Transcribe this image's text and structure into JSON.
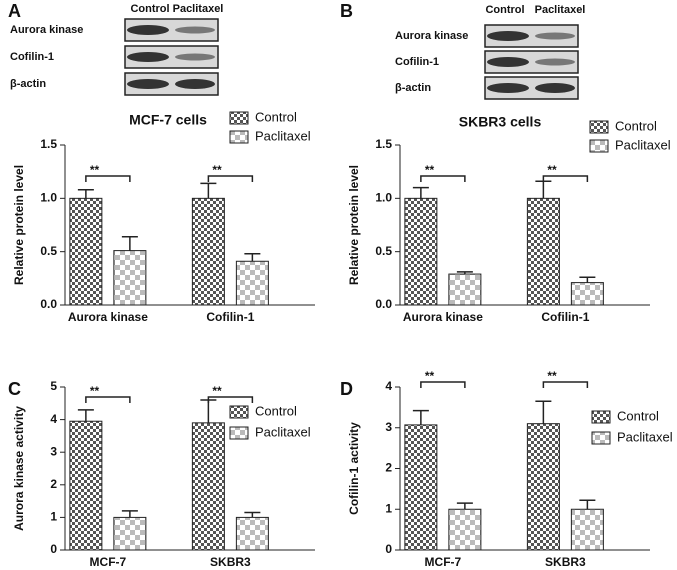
{
  "chart_data": [
    {
      "type": "bar",
      "panel": "A",
      "title": "MCF-7 cells",
      "ylabel": "Relative protein level",
      "blot": {
        "columns": [
          "Control",
          "Paclitaxel"
        ],
        "rows": [
          "Aurora kinase",
          "Cofilin-1",
          "β-actin"
        ]
      },
      "categories": [
        "Aurora kinase",
        "Cofilin-1"
      ],
      "series": [
        {
          "name": "Control",
          "color": "#555555",
          "values": [
            1.0,
            1.0
          ],
          "errors": [
            0.08,
            0.14
          ]
        },
        {
          "name": "Paclitaxel",
          "color": "#bbbbbb",
          "values": [
            0.51,
            0.41
          ],
          "errors": [
            0.13,
            0.07
          ]
        }
      ],
      "significance": [
        "**",
        "**"
      ],
      "ylim": [
        0,
        1.5
      ],
      "yticks": [
        {
          "value": 0,
          "label": "0.0"
        },
        0.5,
        {
          "value": 1,
          "label": "1.0"
        },
        1.5
      ]
    },
    {
      "type": "bar",
      "panel": "B",
      "title": "SKBR3 cells",
      "ylabel": "Relative protein level",
      "blot": {
        "columns": [
          "Control",
          "Paclitaxel"
        ],
        "rows": [
          "Aurora kinase",
          "Cofilin-1",
          "β-actin"
        ]
      },
      "categories": [
        "Aurora kinase",
        "Cofilin-1"
      ],
      "series": [
        {
          "name": "Control",
          "color": "#555555",
          "values": [
            1.0,
            1.0
          ],
          "errors": [
            0.1,
            0.16
          ]
        },
        {
          "name": "Paclitaxel",
          "color": "#bbbbbb",
          "values": [
            0.29,
            0.21
          ],
          "errors": [
            0.02,
            0.05
          ]
        }
      ],
      "significance": [
        "**",
        "**"
      ],
      "ylim": [
        0,
        1.5
      ],
      "yticks": [
        {
          "value": 0,
          "label": "0.0"
        },
        0.5,
        {
          "value": 1,
          "label": "1.0"
        },
        1.5
      ]
    },
    {
      "type": "bar",
      "panel": "C",
      "ylabel": "Aurora kinase activity",
      "categories": [
        "MCF-7",
        "SKBR3"
      ],
      "series": [
        {
          "name": "Control",
          "color": "#555555",
          "values": [
            3.95,
            3.9
          ],
          "errors": [
            0.35,
            0.7
          ]
        },
        {
          "name": "Paclitaxel",
          "color": "#bbbbbb",
          "values": [
            1.0,
            1.0
          ],
          "errors": [
            0.2,
            0.15
          ]
        }
      ],
      "significance": [
        "**",
        "**"
      ],
      "ylim": [
        0,
        5
      ],
      "yticks": [
        0,
        1,
        2,
        3,
        4,
        5
      ]
    },
    {
      "type": "bar",
      "panel": "D",
      "ylabel": "Cofilin-1 activity",
      "categories": [
        "MCF-7",
        "SKBR3"
      ],
      "series": [
        {
          "name": "Control",
          "color": "#555555",
          "values": [
            3.07,
            3.1
          ],
          "errors": [
            0.35,
            0.55
          ]
        },
        {
          "name": "Paclitaxel",
          "color": "#bbbbbb",
          "values": [
            1.0,
            1.0
          ],
          "errors": [
            0.15,
            0.22
          ]
        }
      ],
      "significance": [
        "**",
        "**"
      ],
      "ylim": [
        0,
        4
      ],
      "yticks": [
        0,
        1,
        2,
        3,
        4
      ]
    }
  ]
}
